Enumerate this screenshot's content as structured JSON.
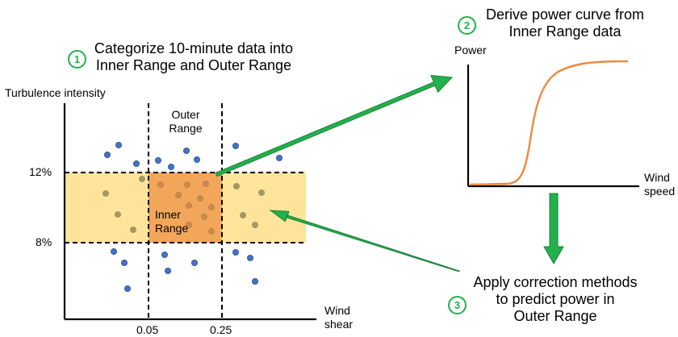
{
  "step1": {
    "number": "1",
    "line1": "Categorize 10-minute data into",
    "line2": "Inner Range and Outer Range"
  },
  "step2": {
    "number": "2",
    "line1": "Derive power curve from",
    "line2": "Inner Range data"
  },
  "step3": {
    "number": "3",
    "line1": "Apply correction methods",
    "line2": "to predict power in",
    "line3": "Outer Range"
  },
  "left_plot": {
    "y_axis_label": "Turbulence intensity",
    "x_axis_label_line1": "Wind",
    "x_axis_label_line2": "shear",
    "y_ticks": [
      "12%",
      "8%"
    ],
    "x_ticks": [
      "0.05",
      "0.25"
    ],
    "outer_range_line1": "Outer",
    "outer_range_line2": "Range",
    "inner_range_line1": "Inner",
    "inner_range_line2": "Range",
    "colors": {
      "band": "#fde49a",
      "inner": "#f2a65a",
      "dots": "#4472c4",
      "arrows": "#22b14c"
    }
  },
  "right_plot": {
    "y_axis_label": "Power",
    "x_axis_label_line1": "Wind",
    "x_axis_label_line2": "speed",
    "curve_color": "#ed8a3f"
  }
}
